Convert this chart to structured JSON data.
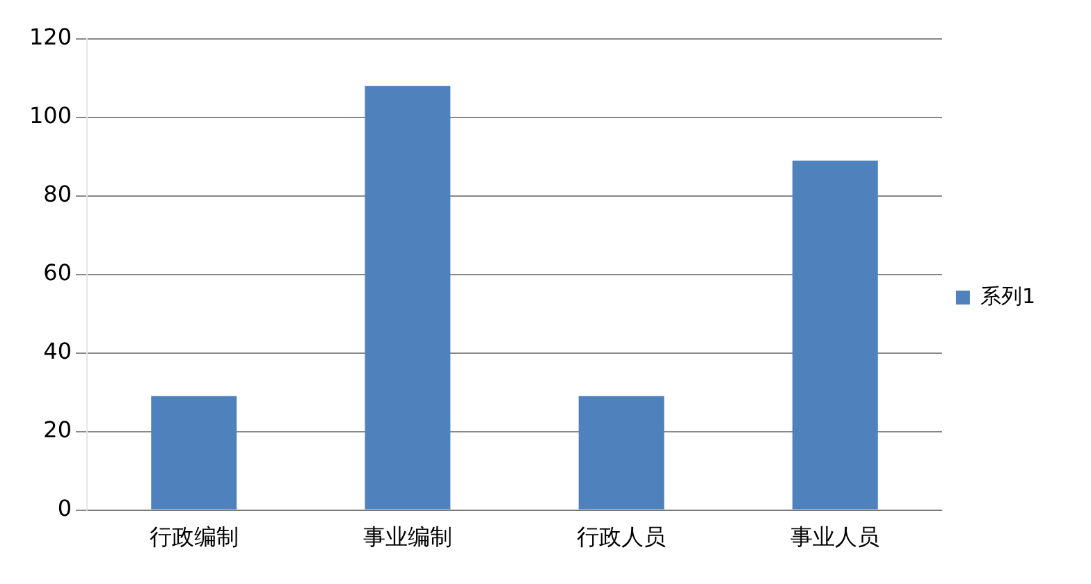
{
  "chart_data": {
    "type": "bar",
    "categories": [
      "行政编制",
      "事业编制",
      "行政人员",
      "事业人员"
    ],
    "series": [
      {
        "name": "系列1",
        "color": "#4f81bd",
        "values": [
          29,
          108,
          29,
          89
        ]
      }
    ],
    "ylim": [
      0,
      120
    ],
    "yticks": [
      0,
      20,
      40,
      60,
      80,
      100,
      120
    ],
    "grid": "y",
    "legend": "right"
  }
}
